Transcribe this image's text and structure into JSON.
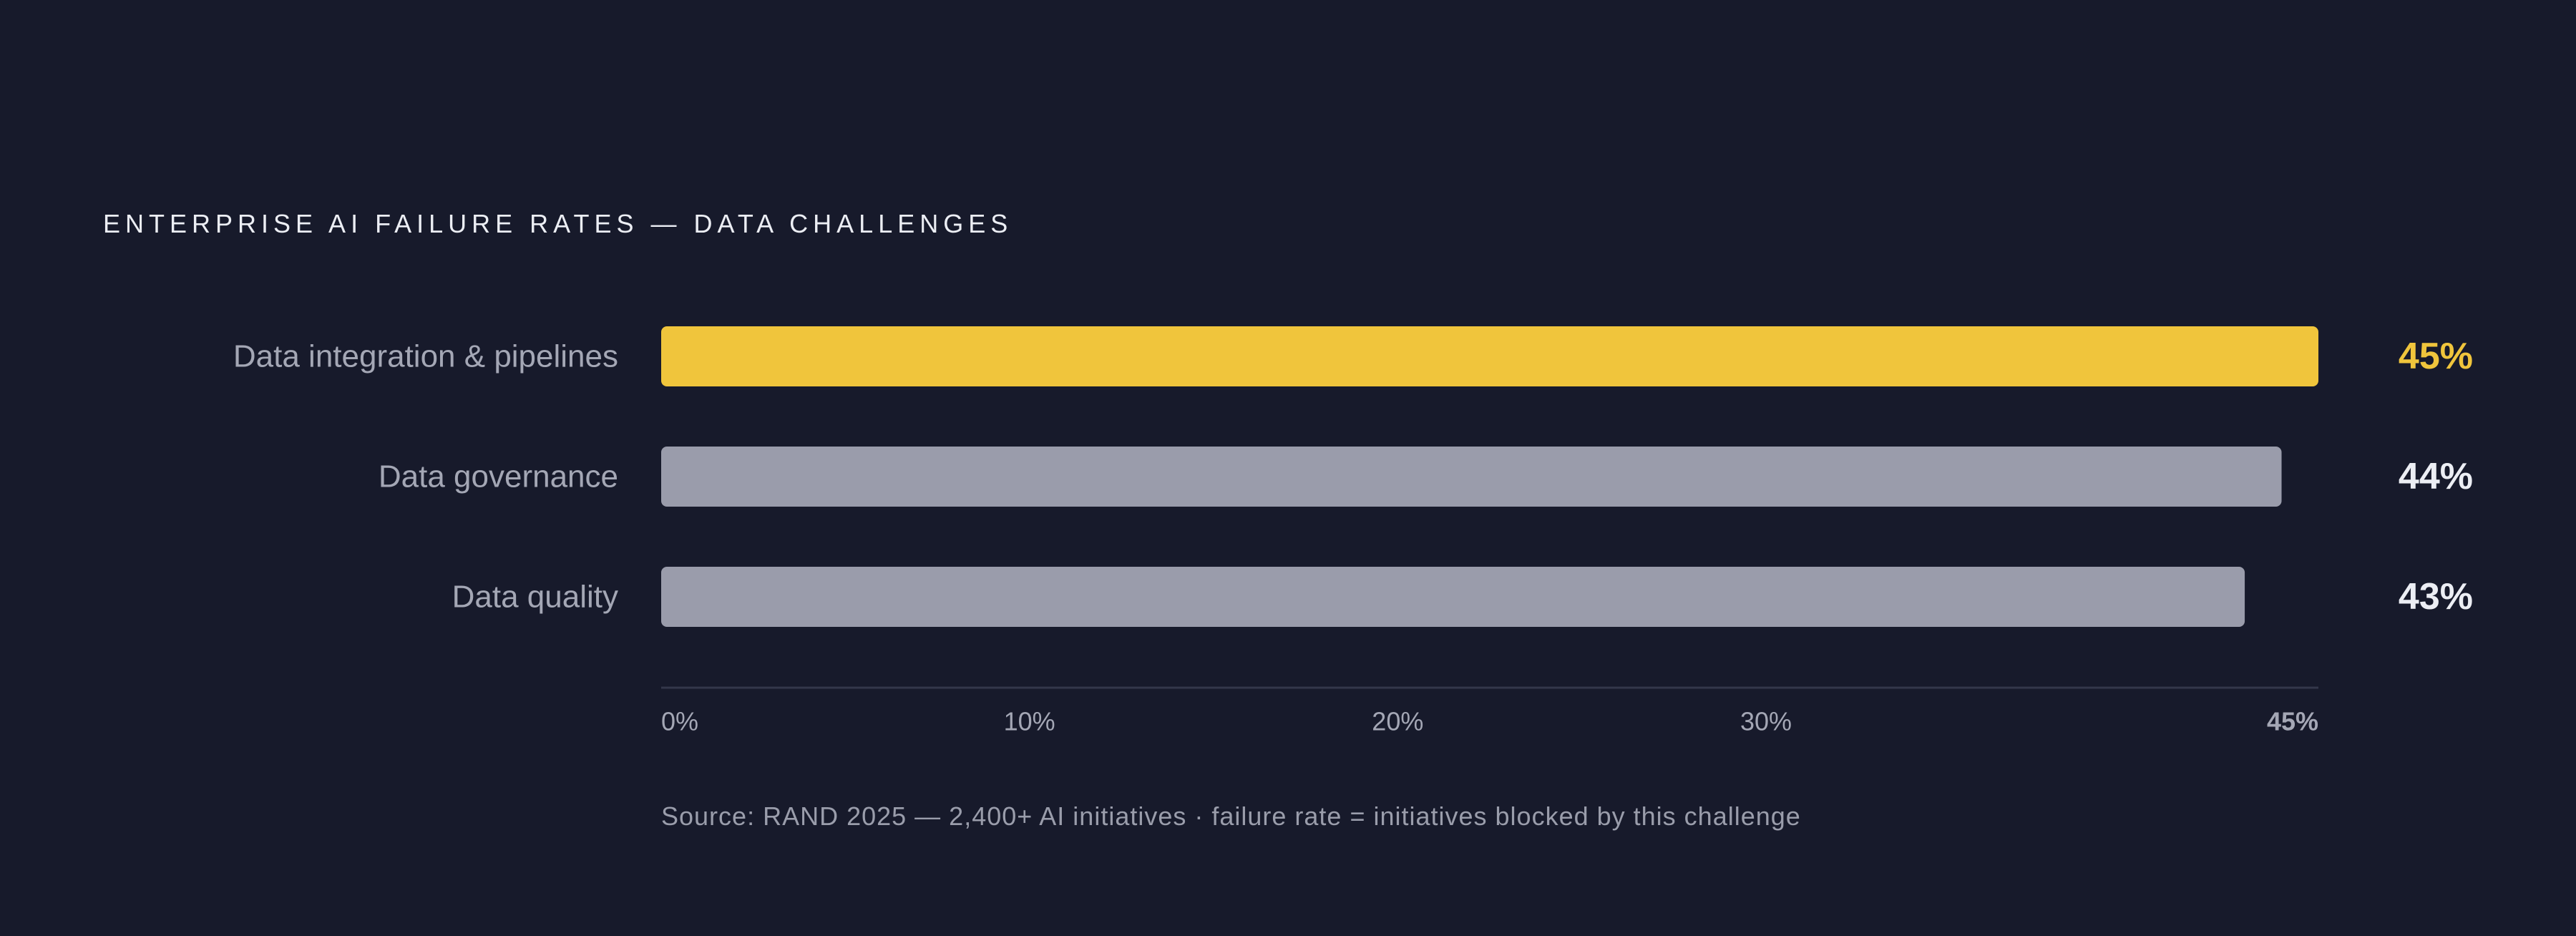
{
  "title": "ENTERPRISE AI FAILURE RATES — DATA CHALLENGES",
  "source": "Source: RAND 2025 — 2,400+ AI initiatives  ·  failure rate = initiatives blocked by this challenge",
  "colors": {
    "background": "#171a2b",
    "highlight": "#f0c53c",
    "bar": "#9a9cab",
    "value_default": "#eceef4",
    "axis": "#33374a"
  },
  "chart_data": {
    "type": "bar",
    "orientation": "horizontal",
    "title": "ENTERPRISE AI FAILURE RATES — DATA CHALLENGES",
    "categories": [
      "Data integration & pipelines",
      "Data governance",
      "Data quality"
    ],
    "values": [
      45,
      44,
      43
    ],
    "value_labels": [
      "45%",
      "44%",
      "43%"
    ],
    "highlight_index": 0,
    "xlim": [
      0,
      45
    ],
    "x_ticks": [
      0,
      10,
      20,
      30,
      45
    ],
    "x_tick_labels": [
      "0%",
      "10%",
      "20%",
      "30%",
      "45%"
    ],
    "grid": false,
    "legend": "none"
  }
}
